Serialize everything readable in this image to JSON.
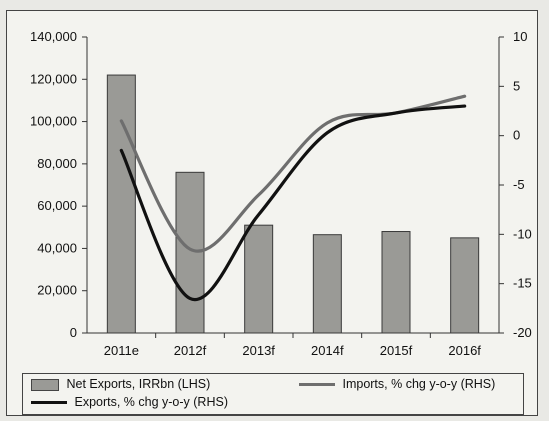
{
  "chart_data": {
    "type": "bar+line",
    "categories": [
      "2011e",
      "2012f",
      "2013f",
      "2014f",
      "2015f",
      "2016f"
    ],
    "series": [
      {
        "name": "Net Exports, IRRbn (LHS)",
        "kind": "bar",
        "axis": "left",
        "values": [
          122000,
          76000,
          51000,
          46500,
          48000,
          45000
        ],
        "color": "#9a9a96"
      },
      {
        "name": "Imports, % chg y-o-y (RHS)",
        "kind": "line",
        "axis": "right",
        "values": [
          1.5,
          -11.5,
          -6,
          1.3,
          2.3,
          4
        ],
        "color": "#6e6e6e"
      },
      {
        "name": "Exports, % chg y-o-y (RHS)",
        "kind": "line",
        "axis": "right",
        "values": [
          -1.5,
          -16.5,
          -8,
          0.3,
          2.3,
          3
        ],
        "color": "#111111"
      }
    ],
    "ylim_left": [
      0,
      140000
    ],
    "ylim_right": [
      -20,
      10
    ],
    "yticks_left": [
      "0",
      "20,000",
      "40,000",
      "60,000",
      "80,000",
      "100,000",
      "120,000",
      "140,000"
    ],
    "yticks_right": [
      "-20",
      "-15",
      "-10",
      "-5",
      "0",
      "5",
      "10"
    ],
    "legend_position": "bottom"
  }
}
